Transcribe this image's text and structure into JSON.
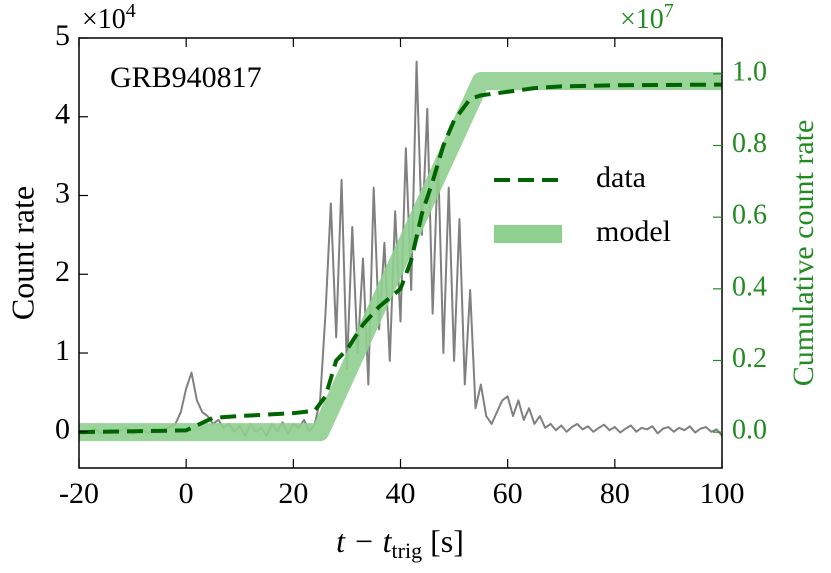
{
  "chart_data": {
    "type": "line",
    "annotation": "GRB940817",
    "ylabel": "Count rate",
    "y2label": "Cumulative count rate",
    "xlabel": [
      "t − t",
      "trig",
      " [s]"
    ],
    "y_multiplier": {
      "base": "×10",
      "exp": "4"
    },
    "y2_multiplier": {
      "base": "×10",
      "exp": "7"
    },
    "xlim": [
      -20,
      100
    ],
    "xticks": [
      -20,
      0,
      20,
      40,
      60,
      80,
      100
    ],
    "ylim": [
      -0.46,
      5
    ],
    "yticks": [
      0,
      1,
      2,
      3,
      4,
      5
    ],
    "y2lim": [
      -0.1,
      1.1
    ],
    "y2ticks": [
      {
        "value": 0,
        "label": "0.0"
      },
      0.2,
      0.4,
      0.6,
      0.8,
      {
        "value": 1,
        "label": "1.0"
      }
    ],
    "legend": "right",
    "series": [
      {
        "color": "#808080",
        "x": [
          -20,
          -19,
          -18,
          -17,
          -16,
          -15,
          -14,
          -13,
          -12,
          -11,
          -10,
          -9,
          -8,
          -7,
          -6,
          -5,
          -4,
          -3,
          -2,
          -1,
          0,
          1,
          2,
          3,
          4,
          5,
          6,
          7,
          8,
          9,
          10,
          11,
          12,
          13,
          14,
          15,
          16,
          17,
          18,
          19,
          20,
          21,
          22,
          23,
          24,
          25,
          26,
          27,
          28,
          29,
          30,
          31,
          32,
          33,
          34,
          35,
          36,
          37,
          38,
          39,
          40,
          41,
          42,
          43,
          44,
          45,
          46,
          47,
          48,
          49,
          50,
          51,
          52,
          53,
          54,
          55,
          56,
          57,
          58,
          59,
          60,
          61,
          62,
          63,
          64,
          65,
          66,
          67,
          68,
          69,
          70,
          71,
          72,
          73,
          74,
          75,
          76,
          77,
          78,
          79,
          80,
          81,
          82,
          83,
          84,
          85,
          86,
          87,
          88,
          89,
          90,
          91,
          92,
          93,
          94,
          95,
          96,
          97,
          98,
          99,
          100
        ],
        "values": [
          0.02,
          -0.03,
          0.01,
          0.04,
          -0.02,
          0.0,
          0.03,
          -0.01,
          0.02,
          0.05,
          -0.03,
          0.01,
          0.02,
          -0.02,
          0.04,
          0.0,
          0.03,
          0.06,
          0.1,
          0.25,
          0.55,
          0.75,
          0.4,
          0.25,
          0.2,
          0.1,
          0.15,
          0.05,
          0.1,
          0.0,
          0.08,
          -0.05,
          0.1,
          0.0,
          0.05,
          -0.05,
          0.1,
          0.0,
          0.12,
          -0.03,
          0.1,
          0.05,
          0.15,
          0.0,
          0.1,
          0.4,
          1.5,
          2.9,
          1.2,
          3.2,
          0.8,
          2.6,
          1.0,
          2.2,
          0.6,
          3.1,
          1.3,
          2.4,
          0.9,
          2.8,
          1.4,
          3.6,
          1.8,
          4.7,
          2.5,
          4.1,
          1.5,
          3.5,
          1.0,
          3.1,
          0.9,
          2.7,
          0.6,
          1.8,
          0.3,
          0.6,
          0.2,
          0.1,
          0.25,
          0.4,
          0.45,
          0.2,
          0.4,
          0.15,
          0.3,
          0.1,
          0.2,
          0.05,
          0.1,
          0.02,
          0.08,
          0.0,
          0.06,
          0.1,
          0.03,
          0.07,
          0.0,
          0.05,
          0.09,
          0.02,
          0.06,
          -0.01,
          0.04,
          0.08,
          0.0,
          0.05,
          0.03,
          0.07,
          -0.02,
          0.04,
          0.06,
          0.0,
          0.05,
          0.02,
          0.07,
          -0.01,
          0.04,
          0.06,
          0.0,
          0.03,
          -0.05
        ]
      },
      {
        "name": "model",
        "color": "#8fcf8f",
        "axis": "y2",
        "x": [
          -20,
          25,
          55,
          100
        ],
        "values": [
          0,
          0,
          0.98,
          0.98
        ]
      },
      {
        "name": "data",
        "color": "#006400",
        "axis": "y2",
        "x": [
          -20,
          0,
          5,
          10,
          20,
          24,
          26,
          28,
          30,
          33,
          36,
          40,
          42,
          44,
          46,
          48,
          50,
          53,
          55,
          60,
          65,
          70,
          80,
          100
        ],
        "values": [
          0,
          0.005,
          0.04,
          0.045,
          0.053,
          0.06,
          0.1,
          0.2,
          0.23,
          0.3,
          0.35,
          0.4,
          0.48,
          0.61,
          0.7,
          0.8,
          0.87,
          0.93,
          0.94,
          0.95,
          0.96,
          0.965,
          0.968,
          0.97
        ]
      }
    ]
  }
}
